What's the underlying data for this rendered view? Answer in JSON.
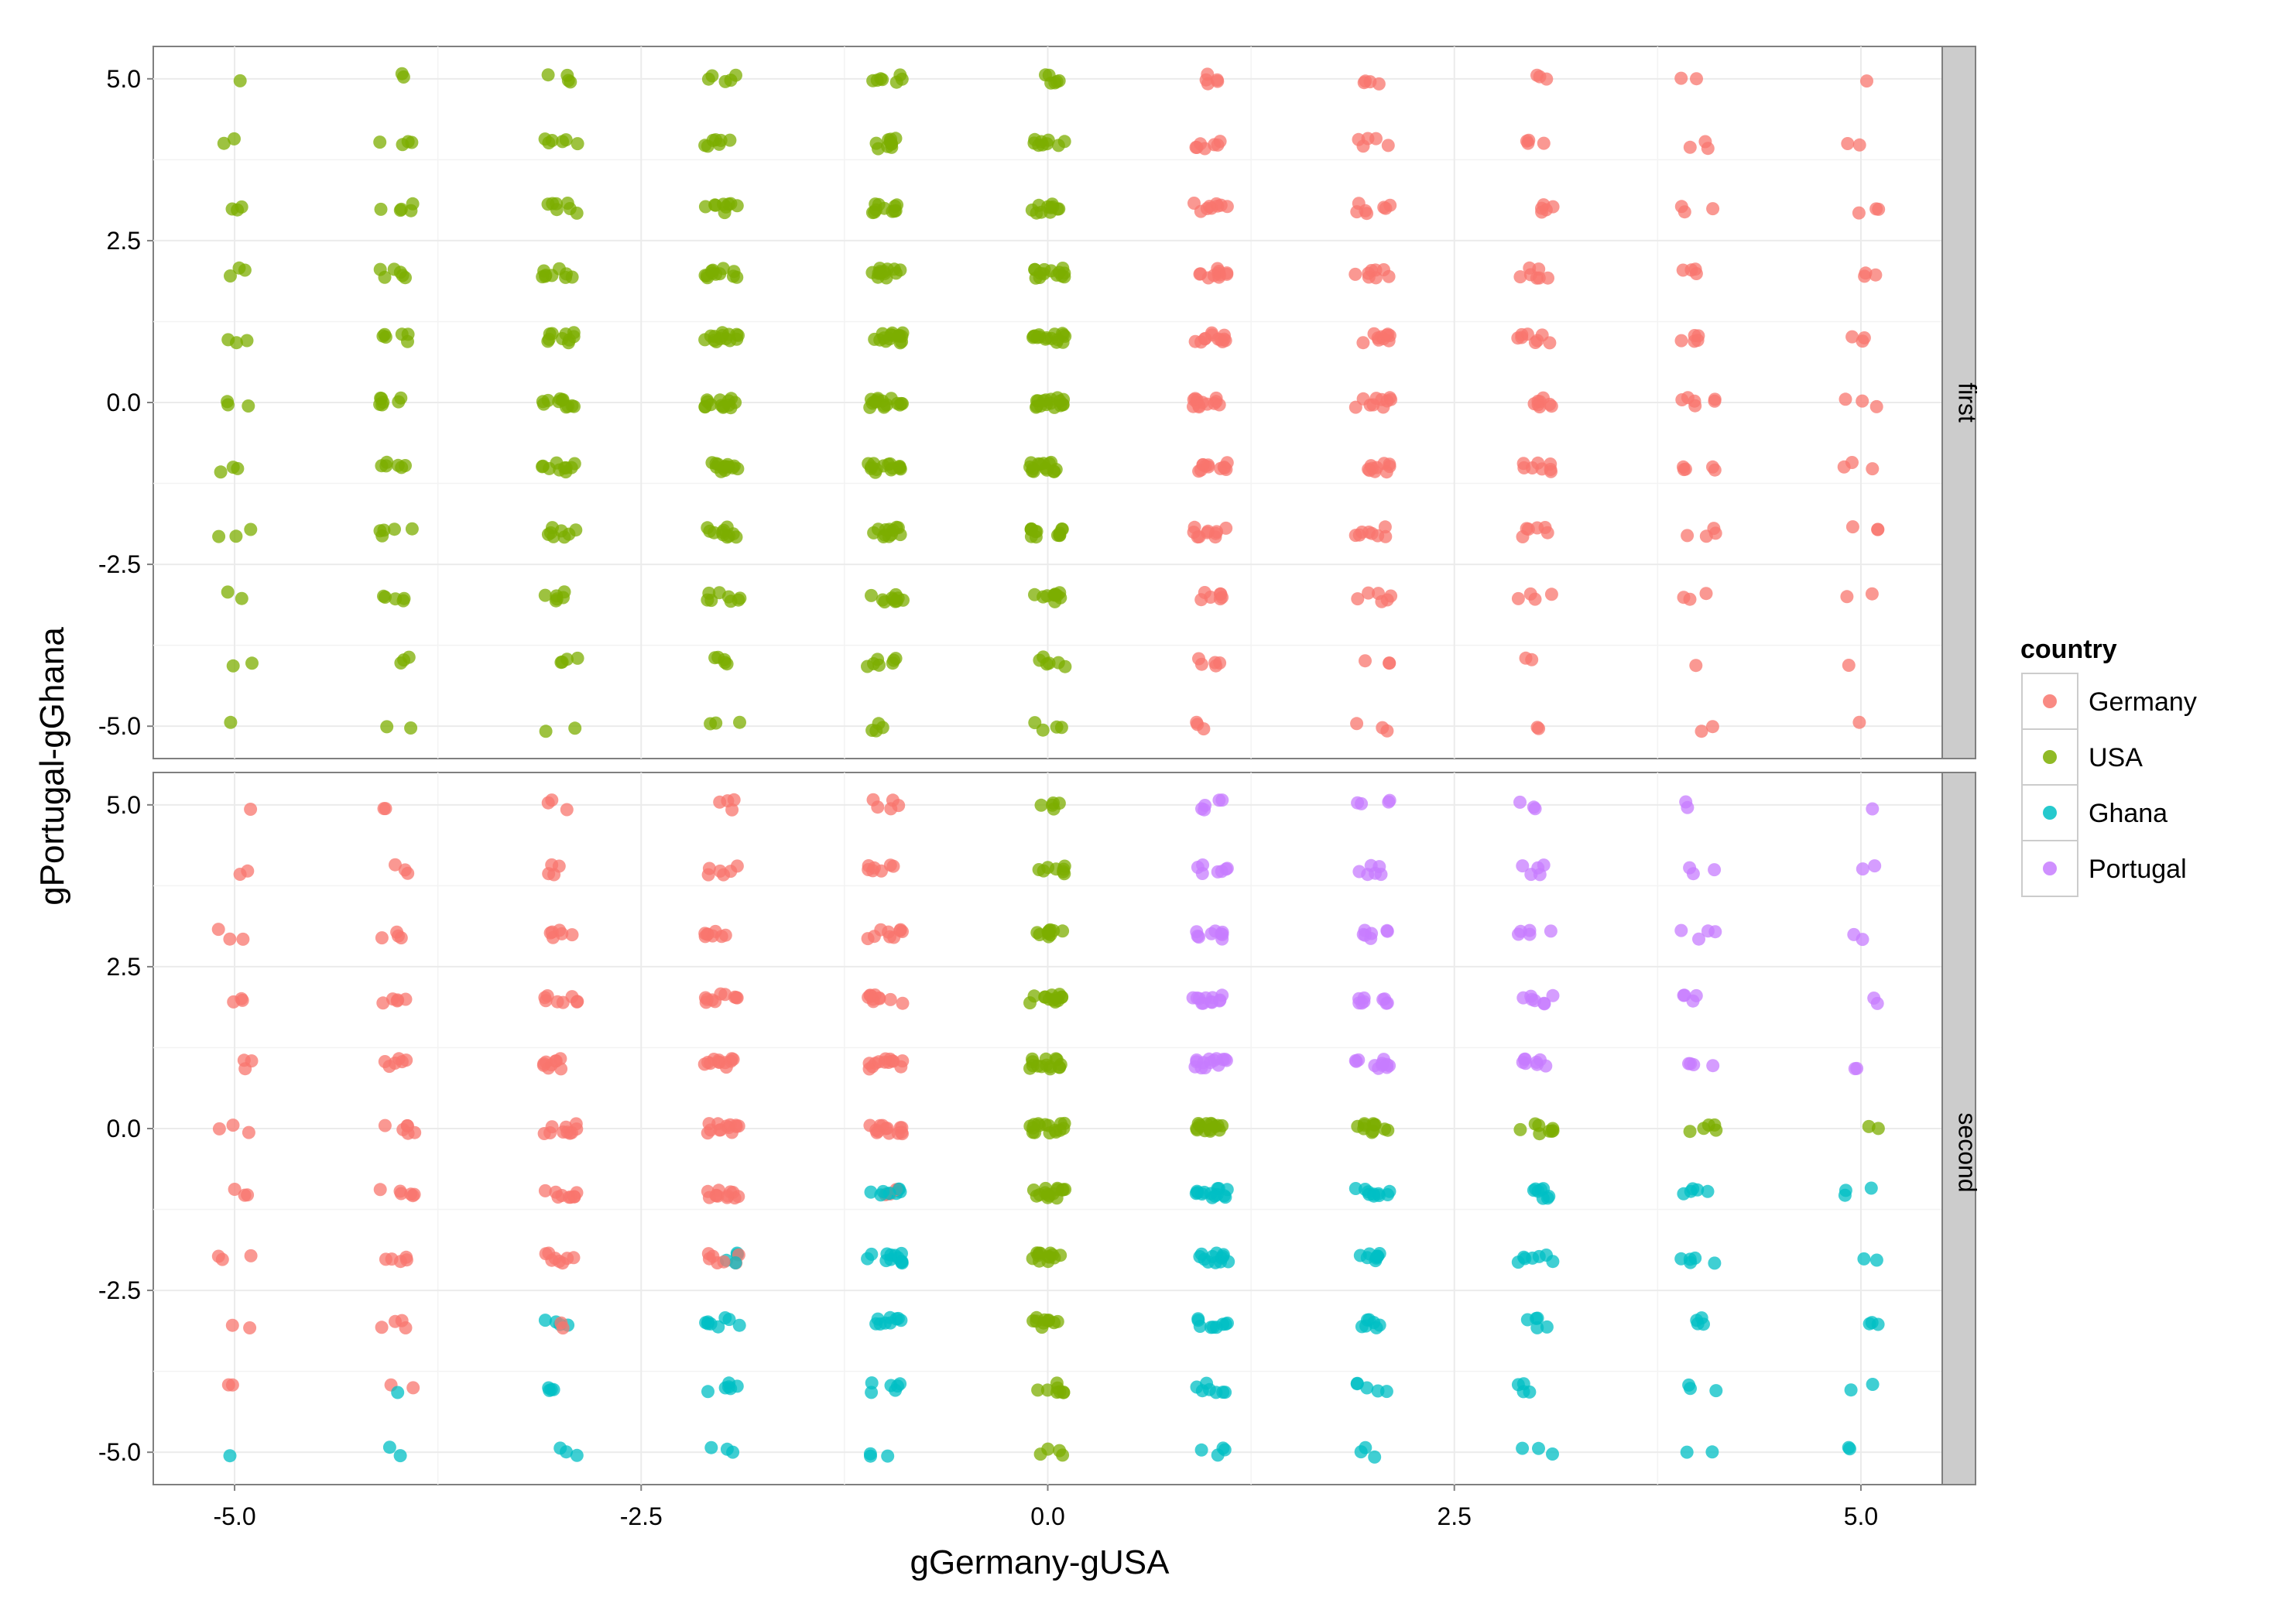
{
  "chart_data": {
    "type": "scatter",
    "xlabel": "gGermany-gUSA",
    "ylabel": "gPortugal-gGhana",
    "xlim": [
      -5.5,
      5.5
    ],
    "ylim": [
      -5.5,
      5.5
    ],
    "x_ticks": [
      -5.0,
      -2.5,
      0.0,
      2.5,
      5.0
    ],
    "x_tick_labels": [
      "-5.0",
      "-2.5",
      "0.0",
      "2.5",
      "5.0"
    ],
    "y_ticks": [
      5.0,
      2.5,
      0.0,
      -2.5,
      -5.0
    ],
    "y_tick_labels": [
      "5.0",
      "2.5",
      "0.0",
      "-2.5",
      "-5.0"
    ],
    "grid": true,
    "point_style": "jittered semi-transparent circles at integer goal-difference grid",
    "legend": {
      "title": "country",
      "position": "right",
      "entries": [
        {
          "name": "Germany",
          "color": "#F8766D"
        },
        {
          "name": "USA",
          "color": "#7CAE00"
        },
        {
          "name": "Ghana",
          "color": "#00BFC4"
        },
        {
          "name": "Portugal",
          "color": "#C77CFF"
        }
      ]
    },
    "colors": {
      "Germany": "#F8766D",
      "USA": "#7CAE00",
      "Ghana": "#00BFC4",
      "Portugal": "#C77CFF"
    },
    "panels": [
      {
        "strip_label": "first",
        "rule": "x > 0 -> Germany; x <= 0 -> USA",
        "x": [
          -5,
          -4,
          -3,
          -2,
          -1,
          0,
          1,
          2,
          3,
          4,
          5
        ],
        "y": [
          5,
          4,
          3,
          2,
          1,
          0,
          -1,
          -2,
          -3,
          -4,
          -5
        ],
        "counts": [
          [
            1,
            2,
            4,
            5,
            7,
            6,
            5,
            4,
            3,
            2,
            1
          ],
          [
            2,
            4,
            6,
            7,
            10,
            9,
            7,
            5,
            4,
            3,
            2
          ],
          [
            3,
            5,
            7,
            9,
            11,
            11,
            9,
            7,
            5,
            3,
            3
          ],
          [
            3,
            6,
            9,
            12,
            13,
            14,
            11,
            8,
            7,
            4,
            3
          ],
          [
            3,
            6,
            10,
            14,
            15,
            16,
            12,
            10,
            8,
            5,
            3
          ],
          [
            3,
            7,
            11,
            14,
            16,
            17,
            13,
            10,
            8,
            6,
            3
          ],
          [
            3,
            6,
            10,
            14,
            15,
            15,
            12,
            10,
            8,
            5,
            3
          ],
          [
            3,
            5,
            8,
            11,
            12,
            13,
            10,
            8,
            6,
            4,
            3
          ],
          [
            2,
            5,
            6,
            8,
            10,
            10,
            7,
            6,
            4,
            3,
            2
          ],
          [
            2,
            3,
            4,
            5,
            7,
            6,
            5,
            3,
            2,
            1,
            1
          ],
          [
            1,
            2,
            2,
            3,
            4,
            4,
            3,
            3,
            2,
            2,
            1
          ]
        ]
      },
      {
        "strip_label": "second",
        "rule": "x = 0 -> USA; else y > 0 -> (x < 0 ? Germany : Portugal); y < 0 -> (x < 0 ? Germany : Ghana), y = 0 -> (x < 0 ? Germany : USA); x <= -1 with y <= -1 shows mixed Ghana",
        "x": [
          -5,
          -4,
          -3,
          -2,
          -1,
          0,
          1,
          2,
          3,
          4,
          5
        ],
        "y": [
          5,
          4,
          3,
          2,
          1,
          0,
          -1,
          -2,
          -3,
          -4,
          -5
        ],
        "counts": [
          [
            1,
            2,
            3,
            4,
            5,
            5,
            5,
            4,
            3,
            2,
            1
          ],
          [
            2,
            3,
            4,
            6,
            7,
            8,
            7,
            6,
            5,
            3,
            2
          ],
          [
            3,
            4,
            6,
            8,
            9,
            10,
            9,
            7,
            5,
            4,
            2
          ],
          [
            3,
            5,
            8,
            10,
            11,
            13,
            12,
            9,
            7,
            4,
            2
          ],
          [
            3,
            6,
            9,
            12,
            13,
            15,
            14,
            11,
            8,
            4,
            2
          ],
          [
            3,
            6,
            10,
            13,
            14,
            16,
            15,
            11,
            8,
            5,
            2
          ],
          [
            3,
            6,
            9,
            12,
            13,
            15,
            14,
            10,
            8,
            5,
            3
          ],
          [
            3,
            5,
            8,
            11,
            12,
            13,
            12,
            9,
            7,
            5,
            2
          ],
          [
            2,
            4,
            6,
            8,
            9,
            10,
            9,
            7,
            5,
            4,
            3
          ],
          [
            2,
            3,
            4,
            6,
            6,
            8,
            7,
            5,
            4,
            3,
            2
          ],
          [
            1,
            2,
            3,
            3,
            3,
            4,
            4,
            3,
            3,
            2,
            2
          ]
        ]
      }
    ]
  }
}
